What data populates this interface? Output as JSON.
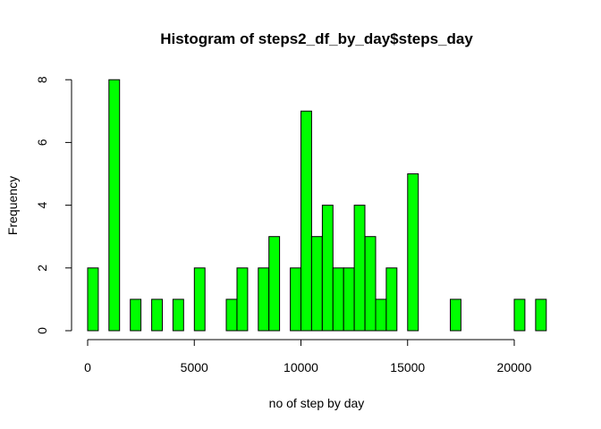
{
  "chart_data": {
    "type": "bar",
    "title": "Histogram of steps2_df_by_day$steps_day",
    "xlabel": "no of step by day",
    "ylabel": "Frequency",
    "bar_color": "#00ff00",
    "bar_border_color": "#000000",
    "bin_width": 500,
    "xlim": [
      0,
      21500
    ],
    "ylim": [
      0,
      8
    ],
    "x_ticks": [
      0,
      5000,
      10000,
      15000,
      20000
    ],
    "y_ticks": [
      0,
      2,
      4,
      6,
      8
    ],
    "bins": [
      {
        "start": 0,
        "end": 500,
        "count": 2
      },
      {
        "start": 1000,
        "end": 1500,
        "count": 8
      },
      {
        "start": 2000,
        "end": 2500,
        "count": 1
      },
      {
        "start": 3000,
        "end": 3500,
        "count": 1
      },
      {
        "start": 4000,
        "end": 4500,
        "count": 1
      },
      {
        "start": 5000,
        "end": 5500,
        "count": 2
      },
      {
        "start": 6500,
        "end": 7000,
        "count": 1
      },
      {
        "start": 7000,
        "end": 7500,
        "count": 2
      },
      {
        "start": 8000,
        "end": 8500,
        "count": 2
      },
      {
        "start": 8500,
        "end": 9000,
        "count": 3
      },
      {
        "start": 9500,
        "end": 10000,
        "count": 2
      },
      {
        "start": 10000,
        "end": 10500,
        "count": 7
      },
      {
        "start": 10500,
        "end": 11000,
        "count": 3
      },
      {
        "start": 11000,
        "end": 11500,
        "count": 4
      },
      {
        "start": 11500,
        "end": 12000,
        "count": 2
      },
      {
        "start": 12000,
        "end": 12500,
        "count": 2
      },
      {
        "start": 12500,
        "end": 13000,
        "count": 4
      },
      {
        "start": 13000,
        "end": 13500,
        "count": 3
      },
      {
        "start": 13500,
        "end": 14000,
        "count": 1
      },
      {
        "start": 14000,
        "end": 14500,
        "count": 2
      },
      {
        "start": 15000,
        "end": 15500,
        "count": 5
      },
      {
        "start": 17000,
        "end": 17500,
        "count": 1
      },
      {
        "start": 20000,
        "end": 20500,
        "count": 1
      },
      {
        "start": 21000,
        "end": 21500,
        "count": 1
      }
    ]
  }
}
